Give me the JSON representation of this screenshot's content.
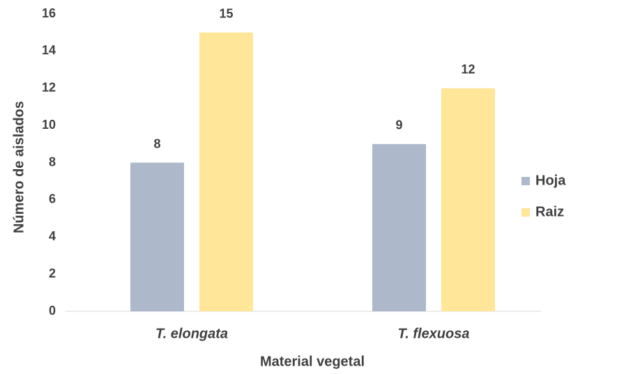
{
  "chart_data": {
    "type": "bar",
    "x_label": "Material vegetal",
    "y_label": "Número de aislados",
    "categories": [
      "T. elongata",
      "T. flexuosa"
    ],
    "series": [
      {
        "name": "Hoja",
        "color": "#adb9ca",
        "values": [
          8,
          9
        ]
      },
      {
        "name": "Raiz",
        "color": "#ffe699",
        "values": [
          15,
          12
        ]
      }
    ],
    "ylim": [
      0,
      16
    ],
    "yticks": [
      0,
      2,
      4,
      6,
      8,
      10,
      12,
      14,
      16
    ],
    "grid": false,
    "legend": "right"
  }
}
